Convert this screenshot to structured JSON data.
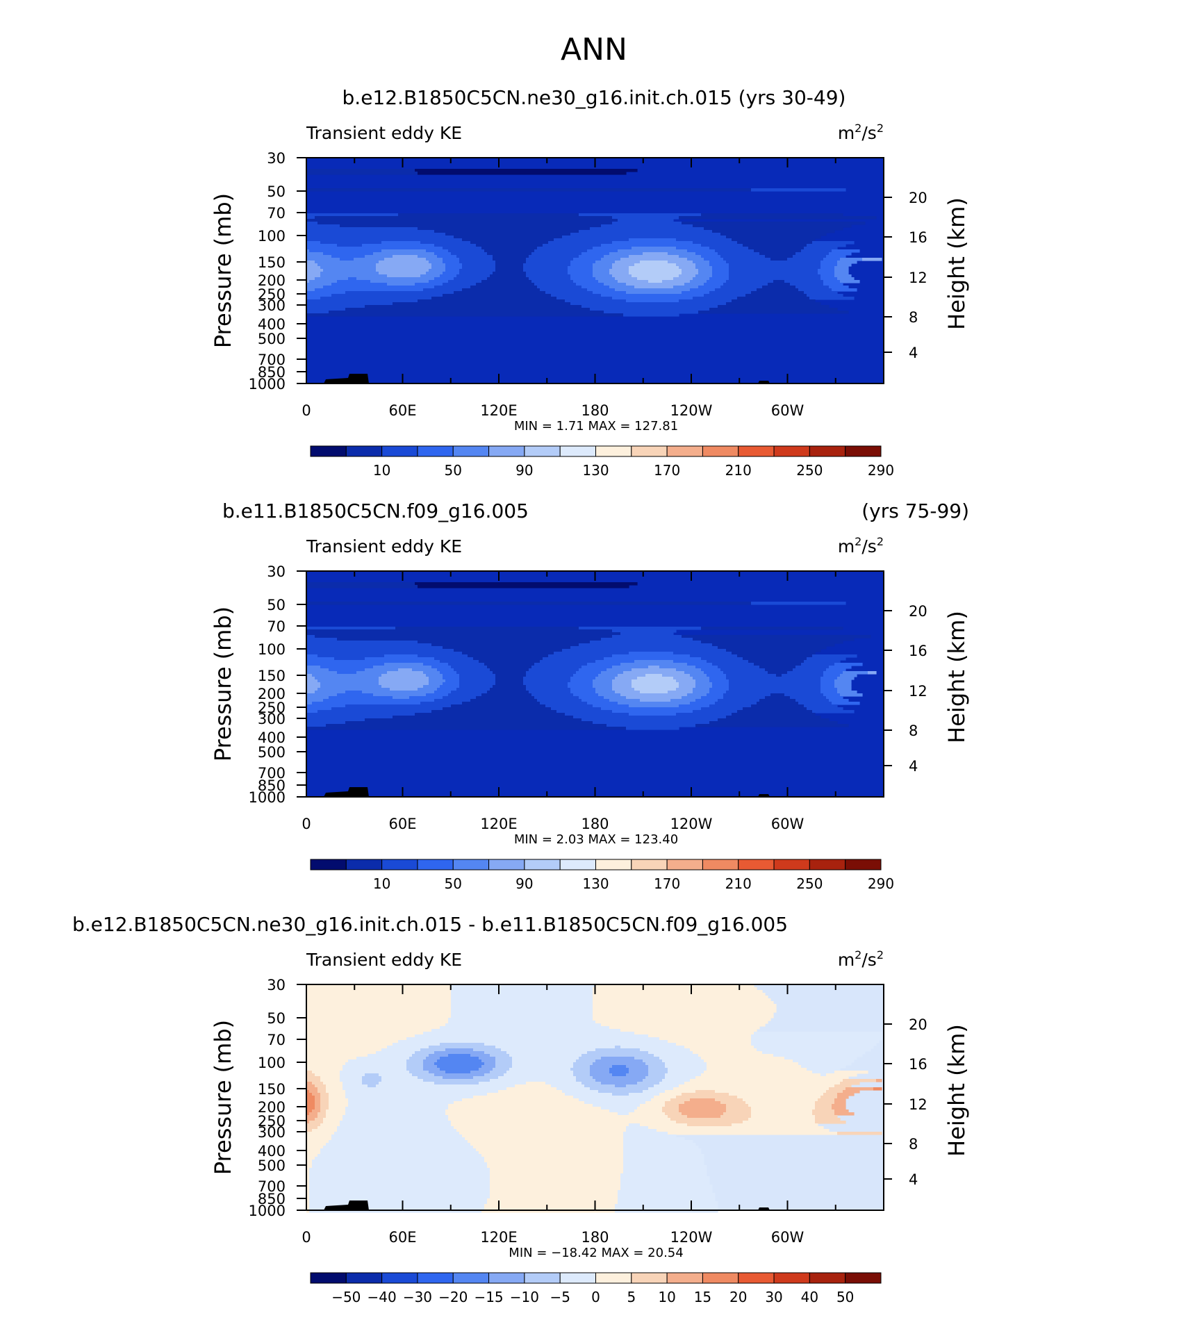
{
  "figure": {
    "season": "ANN"
  },
  "colorbar_labels": {
    "main": [
      {
        "ix": 1,
        "v": "10"
      },
      {
        "ix": 3,
        "v": "50"
      },
      {
        "ix": 5,
        "v": "90"
      },
      {
        "ix": 7,
        "v": "130"
      },
      {
        "ix": 9,
        "v": "170"
      },
      {
        "ix": 11,
        "v": "210"
      },
      {
        "ix": 13,
        "v": "250"
      },
      {
        "ix": 15,
        "v": "290"
      }
    ],
    "diff": [
      {
        "ix": 0,
        "v": "−50"
      },
      {
        "ix": 1,
        "v": "−40"
      },
      {
        "ix": 2,
        "v": "−30"
      },
      {
        "ix": 3,
        "v": "−20"
      },
      {
        "ix": 4,
        "v": "−15"
      },
      {
        "ix": 5,
        "v": "−10"
      },
      {
        "ix": 6,
        "v": "−5"
      },
      {
        "ix": 7,
        "v": "0"
      },
      {
        "ix": 8,
        "v": "5"
      },
      {
        "ix": 9,
        "v": "10"
      },
      {
        "ix": 10,
        "v": "15"
      },
      {
        "ix": 11,
        "v": "20"
      },
      {
        "ix": 12,
        "v": "30"
      },
      {
        "ix": 13,
        "v": "40"
      },
      {
        "ix": 14,
        "v": "50"
      }
    ]
  },
  "chart_data": [
    {
      "type": "heatmap",
      "title": "b.e12.B1850C5CN.ne30_g16.init.ch.015 (yrs 30-49)",
      "title_left": "",
      "title_right": "",
      "variable": "Transient eddy KE",
      "units_base": "m",
      "units_exp1": "2",
      "units_mid": "/s",
      "units_exp2": "2",
      "xlabel": "",
      "ylabel": "Pressure (mb)",
      "ylabel_right": "Height (km)",
      "x_ticks": [
        "0",
        "60E",
        "120E",
        "180",
        "120W",
        "60W"
      ],
      "y_ticks": [
        "30",
        "50",
        "70",
        "100",
        "150",
        "200",
        "250",
        "300",
        "400",
        "500",
        "700",
        "850",
        "1000"
      ],
      "y_right_ticks": [
        "20",
        "16",
        "12",
        "8",
        "4"
      ],
      "min_label": "MIN =",
      "min": "1.71",
      "max_label": "MAX =",
      "max": "127.81",
      "colorbar_palette": [
        "#020c6e",
        "#0b2cab",
        "#1a4ad6",
        "#2f66ef",
        "#5486f2",
        "#86a9f4",
        "#b3ccf8",
        "#ddeafc",
        "#fdf0dd",
        "#f8d4b8",
        "#f4ae8c",
        "#ef8a62",
        "#e85a33",
        "#cf3a1c",
        "#a8220e",
        "#7a0e05"
      ],
      "colorbar_labels": "main",
      "color_levels": [
        0,
        10,
        30,
        50,
        70,
        90,
        110,
        130
      ],
      "bg_color": "#082ab8",
      "field": "eke1"
    },
    {
      "type": "heatmap",
      "title": "",
      "title_left": "b.e11.B1850C5CN.f09_g16.005",
      "title_right": "(yrs 75-99)",
      "variable": "Transient eddy KE",
      "units_base": "m",
      "units_exp1": "2",
      "units_mid": "/s",
      "units_exp2": "2",
      "xlabel": "",
      "ylabel": "Pressure (mb)",
      "ylabel_right": "Height (km)",
      "x_ticks": [
        "0",
        "60E",
        "120E",
        "180",
        "120W",
        "60W"
      ],
      "y_ticks": [
        "30",
        "50",
        "70",
        "100",
        "150",
        "200",
        "250",
        "300",
        "400",
        "500",
        "700",
        "850",
        "1000"
      ],
      "y_right_ticks": [
        "20",
        "16",
        "12",
        "8",
        "4"
      ],
      "min_label": "MIN =",
      "min": "2.03",
      "max_label": "MAX =",
      "max": "123.40",
      "colorbar_palette": [
        "#020c6e",
        "#0b2cab",
        "#1a4ad6",
        "#2f66ef",
        "#5486f2",
        "#86a9f4",
        "#b3ccf8",
        "#ddeafc",
        "#fdf0dd",
        "#f8d4b8",
        "#f4ae8c",
        "#ef8a62",
        "#e85a33",
        "#cf3a1c",
        "#a8220e",
        "#7a0e05"
      ],
      "colorbar_labels": "main",
      "color_levels": [
        0,
        10,
        30,
        50,
        70,
        90,
        110,
        130
      ],
      "bg_color": "#082ab8",
      "field": "eke2"
    },
    {
      "type": "heatmap",
      "title": "",
      "title_left": "b.e12.B1850C5CN.ne30_g16.init.ch.015 - b.e11.B1850C5CN.f09_g16.005",
      "title_right": "",
      "variable": "Transient eddy KE",
      "units_base": "m",
      "units_exp1": "2",
      "units_mid": "/s",
      "units_exp2": "2",
      "xlabel": "",
      "ylabel": "Pressure (mb)",
      "ylabel_right": "Height (km)",
      "x_ticks": [
        "0",
        "60E",
        "120E",
        "180",
        "120W",
        "60W"
      ],
      "y_ticks": [
        "30",
        "50",
        "70",
        "100",
        "150",
        "200",
        "250",
        "300",
        "400",
        "500",
        "700",
        "850",
        "1000"
      ],
      "y_right_ticks": [
        "20",
        "16",
        "12",
        "8",
        "4"
      ],
      "min_label": "MIN =",
      "min": "−18.42",
      "max_label": "MAX =",
      "max": "20.54",
      "colorbar_palette": [
        "#020c6e",
        "#0b2cab",
        "#1a4ad6",
        "#2f66ef",
        "#5486f2",
        "#86a9f4",
        "#b3ccf8",
        "#ddeafc",
        "#fdf0dd",
        "#f8d4b8",
        "#f4ae8c",
        "#ef8a62",
        "#e85a33",
        "#cf3a1c",
        "#a8220e",
        "#7a0e05"
      ],
      "colorbar_labels": "diff",
      "color_levels": [
        -20,
        -15,
        -10,
        -5,
        0,
        5,
        10,
        15,
        20
      ],
      "bg_color": "#d8e6fb",
      "field": "diff"
    }
  ]
}
